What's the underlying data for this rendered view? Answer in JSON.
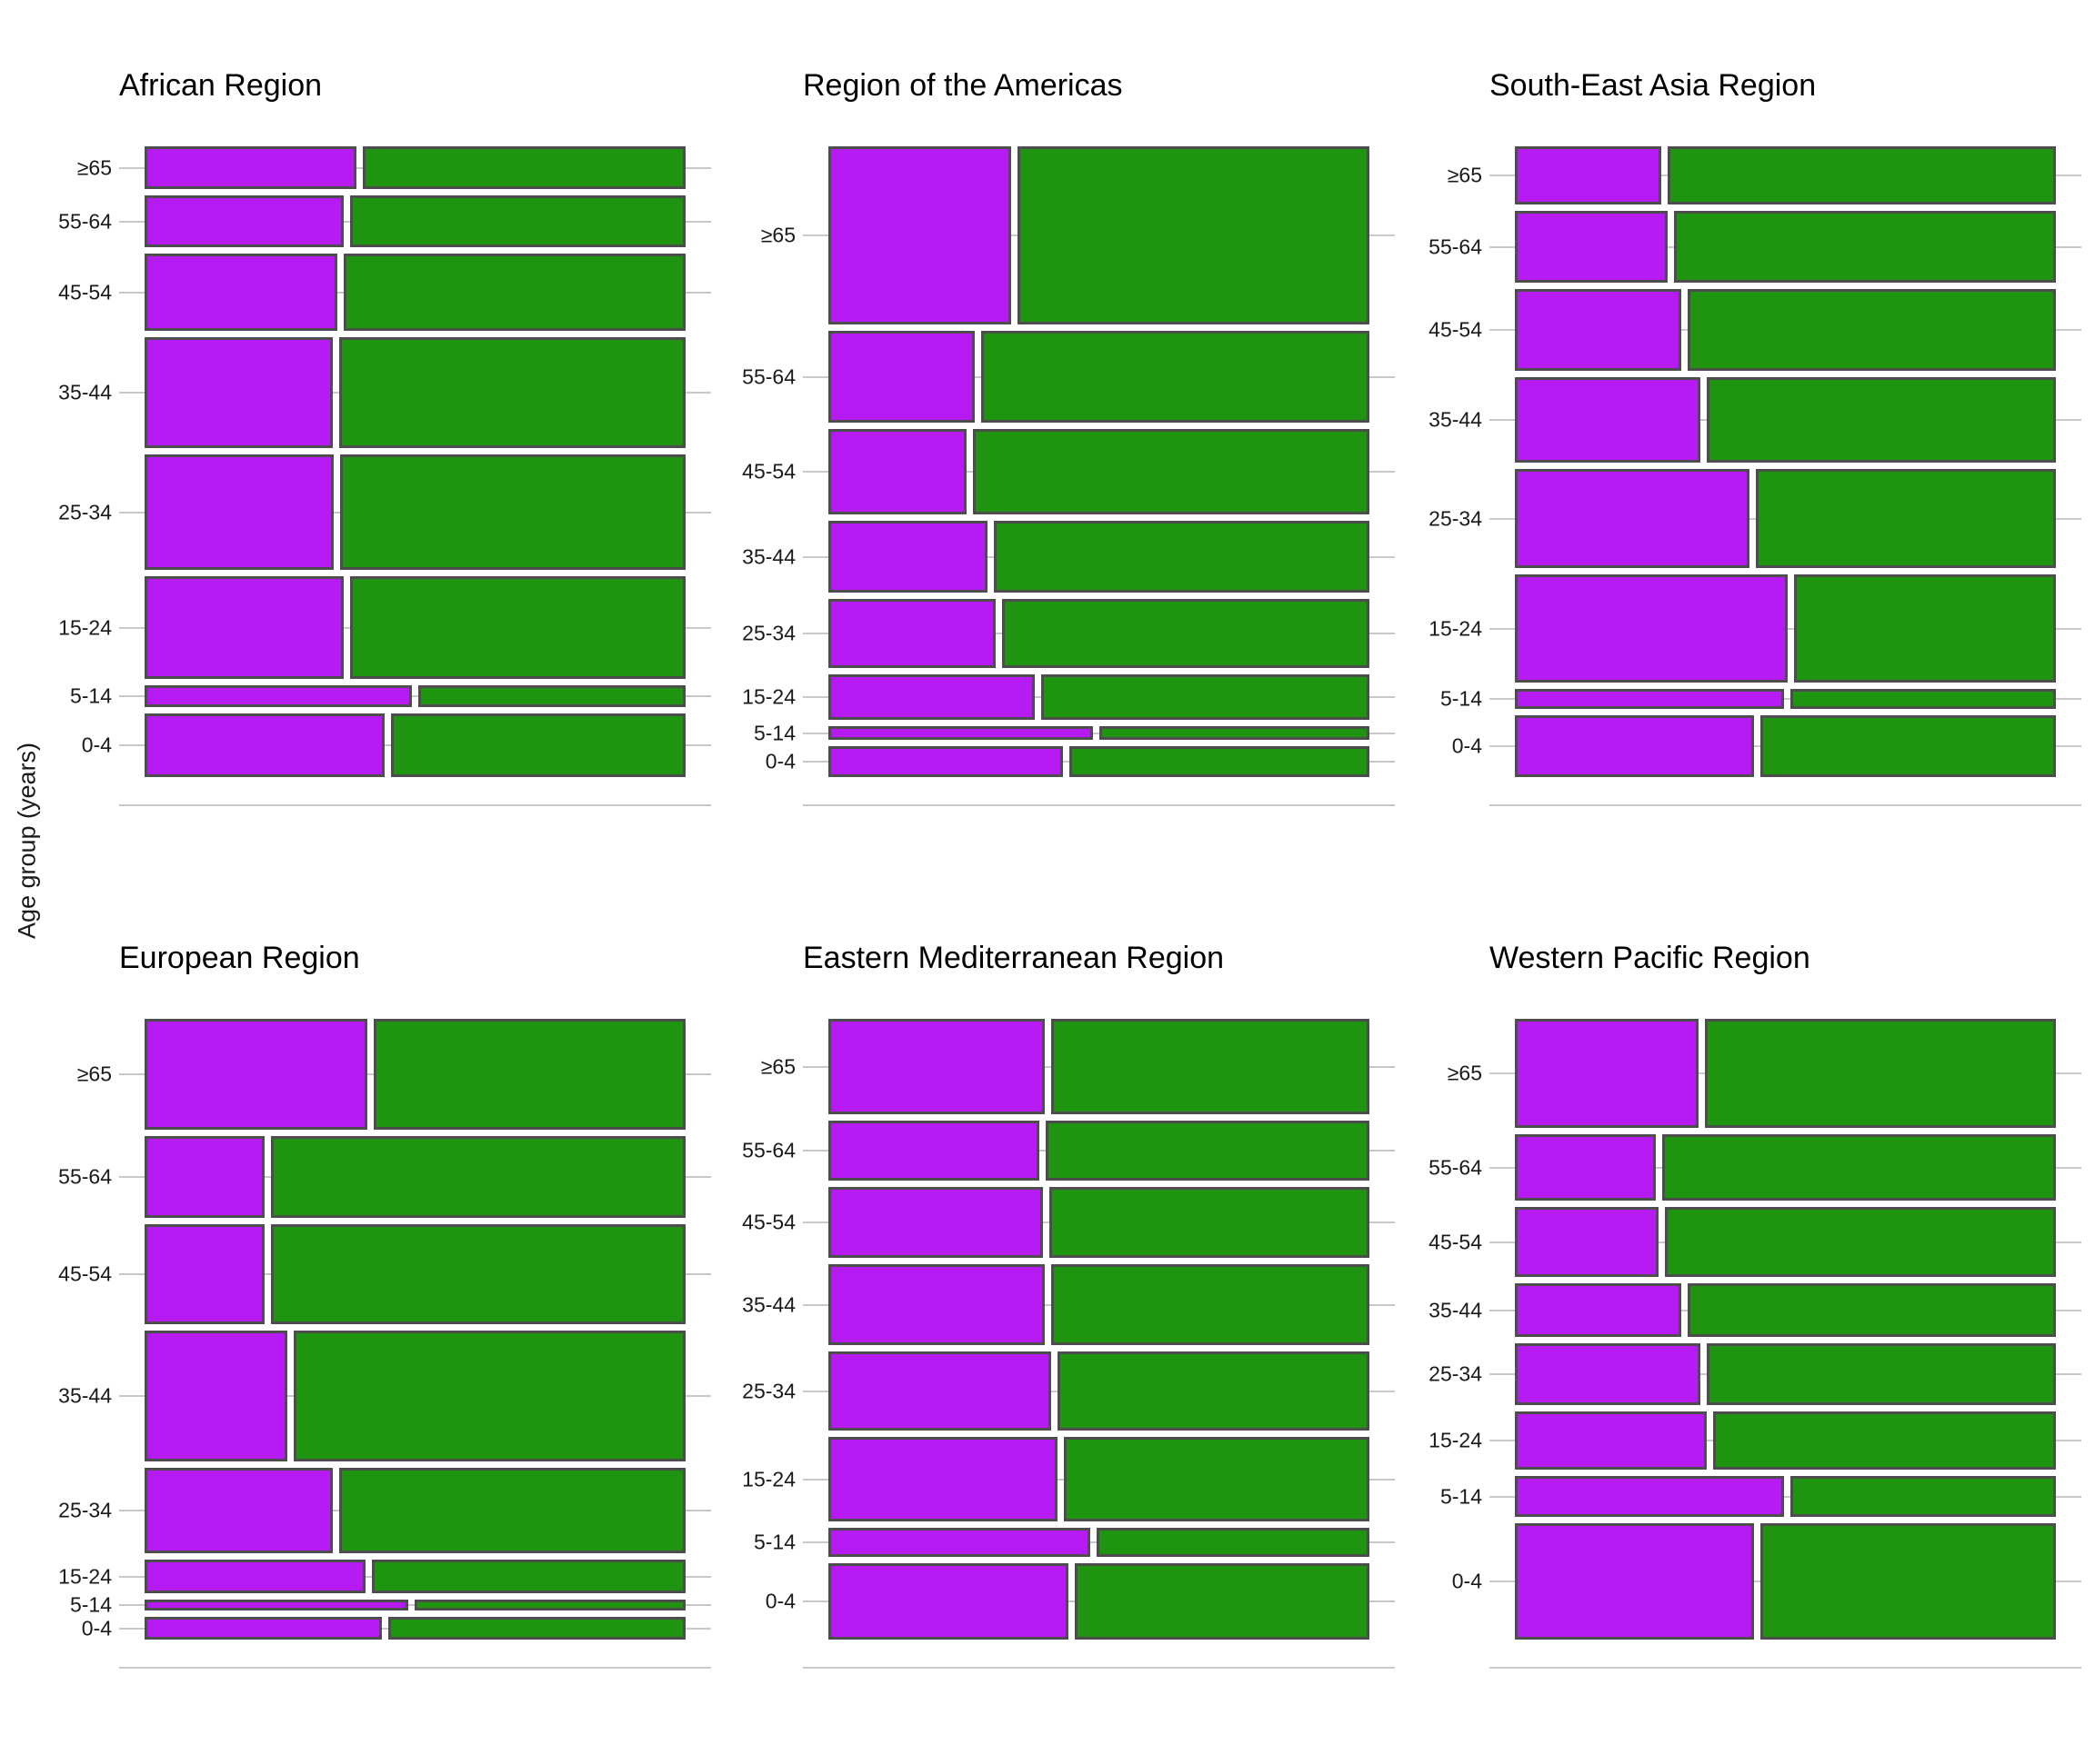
{
  "y_axis_label": "Age group (years)",
  "age_groups": [
    "≥65",
    "55-64",
    "45-54",
    "35-44",
    "25-34",
    "15-24",
    "5-14",
    "0-4"
  ],
  "colors": {
    "purple_segment": "#B51BF2",
    "green_segment": "#1F9410",
    "bar_border": "#4D4D4D",
    "grid_line": "#C9C9C9",
    "text": "#1A1A1A"
  },
  "chart_data": {
    "type": "mosaic",
    "description_visible": "Six-panel mosaic chart; each panel stacks age-group rows (row height = age-group share) split into a purple left segment and green right segment (widths = within-group shares).",
    "legend": "none visible",
    "panels": [
      {
        "title": "African Region",
        "rows": [
          {
            "age": "≥65",
            "height_share": 0.0729,
            "left_share": 0.397
          },
          {
            "age": "55-64",
            "height_share": 0.0884,
            "left_share": 0.374
          },
          {
            "age": "45-54",
            "height_share": 0.1318,
            "left_share": 0.362
          },
          {
            "age": "35-44",
            "height_share": 0.1891,
            "left_share": 0.354
          },
          {
            "age": "25-34",
            "height_share": 0.1969,
            "left_share": 0.355
          },
          {
            "age": "15-24",
            "height_share": 0.1752,
            "left_share": 0.374
          },
          {
            "age": "5-14",
            "height_share": 0.0372,
            "left_share": 0.5
          },
          {
            "age": "0-4",
            "height_share": 0.1085,
            "left_share": 0.45
          }
        ]
      },
      {
        "title": "Region of the Americas",
        "rows": [
          {
            "age": "≥65",
            "height_share": 0.3039,
            "left_share": 0.343
          },
          {
            "age": "55-64",
            "height_share": 0.1566,
            "left_share": 0.277
          },
          {
            "age": "45-54",
            "height_share": 0.1457,
            "left_share": 0.262
          },
          {
            "age": "35-44",
            "height_share": 0.1225,
            "left_share": 0.3
          },
          {
            "age": "25-34",
            "height_share": 0.1178,
            "left_share": 0.315
          },
          {
            "age": "15-24",
            "height_share": 0.0775,
            "left_share": 0.388
          },
          {
            "age": "5-14",
            "height_share": 0.0233,
            "left_share": 0.495
          },
          {
            "age": "0-4",
            "height_share": 0.0527,
            "left_share": 0.44
          }
        ]
      },
      {
        "title": "South-East Asia Region",
        "rows": [
          {
            "age": "≥65",
            "height_share": 0.0992,
            "left_share": 0.276
          },
          {
            "age": "55-64",
            "height_share": 0.1225,
            "left_share": 0.289
          },
          {
            "age": "45-54",
            "height_share": 0.1395,
            "left_share": 0.314
          },
          {
            "age": "35-44",
            "height_share": 0.1457,
            "left_share": 0.348
          },
          {
            "age": "25-34",
            "height_share": 0.169,
            "left_share": 0.44
          },
          {
            "age": "15-24",
            "height_share": 0.1845,
            "left_share": 0.51
          },
          {
            "age": "5-14",
            "height_share": 0.0341,
            "left_share": 0.503
          },
          {
            "age": "0-4",
            "height_share": 0.1054,
            "left_share": 0.448
          }
        ]
      },
      {
        "title": "European Region",
        "rows": [
          {
            "age": "≥65",
            "height_share": 0.1924,
            "left_share": 0.417
          },
          {
            "age": "55-64",
            "height_share": 0.142,
            "left_share": 0.227
          },
          {
            "age": "45-54",
            "height_share": 0.1735,
            "left_share": 0.227
          },
          {
            "age": "35-44",
            "height_share": 0.2271,
            "left_share": 0.269
          },
          {
            "age": "25-34",
            "height_share": 0.1483,
            "left_share": 0.354
          },
          {
            "age": "15-24",
            "height_share": 0.0584,
            "left_share": 0.415
          },
          {
            "age": "5-14",
            "height_share": 0.0189,
            "left_share": 0.494
          },
          {
            "age": "0-4",
            "height_share": 0.0394,
            "left_share": 0.445
          }
        ]
      },
      {
        "title": "Eastern Mediterranean Region",
        "rows": [
          {
            "age": "≥65",
            "height_share": 0.1656,
            "left_share": 0.406
          },
          {
            "age": "55-64",
            "height_share": 0.1041,
            "left_share": 0.395
          },
          {
            "age": "45-54",
            "height_share": 0.123,
            "left_share": 0.402
          },
          {
            "age": "35-44",
            "height_share": 0.1404,
            "left_share": 0.406
          },
          {
            "age": "25-34",
            "height_share": 0.1372,
            "left_share": 0.417
          },
          {
            "age": "15-24",
            "height_share": 0.1467,
            "left_share": 0.43
          },
          {
            "age": "5-14",
            "height_share": 0.0505,
            "left_share": 0.49
          },
          {
            "age": "0-4",
            "height_share": 0.1325,
            "left_share": 0.45
          }
        ]
      },
      {
        "title": "Western Pacific Region",
        "rows": [
          {
            "age": "≥65",
            "height_share": 0.1893,
            "left_share": 0.345
          },
          {
            "age": "55-64",
            "height_share": 0.1151,
            "left_share": 0.267
          },
          {
            "age": "45-54",
            "height_share": 0.1215,
            "left_share": 0.271
          },
          {
            "age": "35-44",
            "height_share": 0.0931,
            "left_share": 0.314
          },
          {
            "age": "25-34",
            "height_share": 0.1073,
            "left_share": 0.348
          },
          {
            "age": "15-24",
            "height_share": 0.1009,
            "left_share": 0.36
          },
          {
            "age": "5-14",
            "height_share": 0.071,
            "left_share": 0.503
          },
          {
            "age": "0-4",
            "height_share": 0.2019,
            "left_share": 0.448
          }
        ]
      }
    ]
  }
}
